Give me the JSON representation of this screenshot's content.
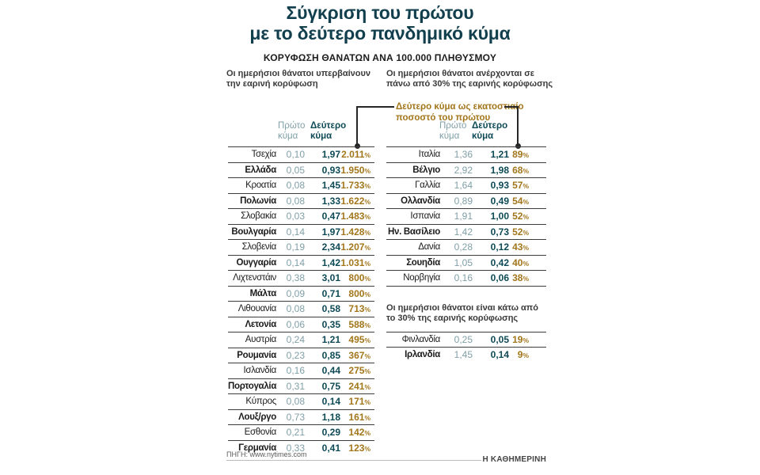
{
  "title": {
    "lines": [
      "Σύγκριση του πρώτου",
      "με το δεύτερο πανδημικό κύμα"
    ]
  },
  "subtitle": "ΚΟΡΥΦΩΣΗ ΘΑΝΑΤΩΝ ΑΝΑ 100.000 ΠΛΗΘΥΣΜΟΥ",
  "sections": {
    "left_label": "Οι ημερήσιοι θάνατοι υπερβαίνουν την εαρινή κορύφωση",
    "right_label": "Οι ημερήσιοι θάνατοι ανέρχονται σε πάνω από 30% της εαρινής κορύφωσης",
    "below30_label": "Οι ημερήσιοι θάνατοι είναι κάτω από το 30% της εαρινής κορύφωσης"
  },
  "callout": "Δεύτερο κύμα ως εκατοστιαίο ποσοστό του πρώτου",
  "column_headers": {
    "first_wave": "Πρώτο κύμα",
    "second_wave": "Δεύτερο κύμα"
  },
  "colors": {
    "title": "#123f4d",
    "first_wave": "#7f9fa7",
    "second_wave": "#0d4a56",
    "percent": "#a2761b",
    "rule": "#3d3d3d",
    "bracket": "#262626"
  },
  "chart_data": {
    "type": "table",
    "title": "Σύγκριση του πρώτου με το δεύτερο πανδημικό κύμα",
    "subtitle": "ΚΟΡΥΦΩΣΗ ΘΑΝΑΤΩΝ ΑΝΑ 100.000 ΠΛΗΘΥΣΜΟΥ",
    "columns": [
      "Χώρα",
      "Πρώτο κύμα",
      "Δεύτερο κύμα",
      "Δεύτερο κύμα ως εκατοστιαίο ποσοστό του πρώτου"
    ],
    "groups": [
      {
        "label": "Οι ημερήσιοι θάνατοι υπερβαίνουν την εαρινή κορύφωση",
        "rows": [
          {
            "country": "Τσεχία",
            "first_wave": "0,10",
            "second_wave": "1,97",
            "second_as_pct_of_first": "2.011%"
          },
          {
            "country": "Ελλάδα",
            "first_wave": "0,05",
            "second_wave": "0,93",
            "second_as_pct_of_first": "1.950%"
          },
          {
            "country": "Κροατία",
            "first_wave": "0,08",
            "second_wave": "1,45",
            "second_as_pct_of_first": "1.733%"
          },
          {
            "country": "Πολωνία",
            "first_wave": "0,08",
            "second_wave": "1,33",
            "second_as_pct_of_first": "1.622%"
          },
          {
            "country": "Σλοβακία",
            "first_wave": "0,03",
            "second_wave": "0,47",
            "second_as_pct_of_first": "1.483%"
          },
          {
            "country": "Βουλγαρία",
            "first_wave": "0,14",
            "second_wave": "1,97",
            "second_as_pct_of_first": "1.428%"
          },
          {
            "country": "Σλοβενία",
            "first_wave": "0,19",
            "second_wave": "2,34",
            "second_as_pct_of_first": "1.207%"
          },
          {
            "country": "Ουγγαρία",
            "first_wave": "0,14",
            "second_wave": "1,42",
            "second_as_pct_of_first": "1.031%"
          },
          {
            "country": "Λιχτενστάιν",
            "first_wave": "0,38",
            "second_wave": "3,01",
            "second_as_pct_of_first": "800%"
          },
          {
            "country": "Μάλτα",
            "first_wave": "0,09",
            "second_wave": "0,71",
            "second_as_pct_of_first": "800%"
          },
          {
            "country": "Λιθουανία",
            "first_wave": "0,08",
            "second_wave": "0,58",
            "second_as_pct_of_first": "713%"
          },
          {
            "country": "Λετονία",
            "first_wave": "0,06",
            "second_wave": "0,35",
            "second_as_pct_of_first": "588%"
          },
          {
            "country": "Αυστρία",
            "first_wave": "0,24",
            "second_wave": "1,21",
            "second_as_pct_of_first": "495%"
          },
          {
            "country": "Ρουμανία",
            "first_wave": "0,23",
            "second_wave": "0,85",
            "second_as_pct_of_first": "367%"
          },
          {
            "country": "Ισλανδία",
            "first_wave": "0,16",
            "second_wave": "0,44",
            "second_as_pct_of_first": "275%"
          },
          {
            "country": "Πορτογαλία",
            "first_wave": "0,31",
            "second_wave": "0,75",
            "second_as_pct_of_first": "241%"
          },
          {
            "country": "Κύπρος",
            "first_wave": "0,08",
            "second_wave": "0,14",
            "second_as_pct_of_first": "171%"
          },
          {
            "country": "Λουξ/ργο",
            "first_wave": "0,73",
            "second_wave": "1,18",
            "second_as_pct_of_first": "161%"
          },
          {
            "country": "Εσθονία",
            "first_wave": "0,21",
            "second_wave": "0,29",
            "second_as_pct_of_first": "142%"
          },
          {
            "country": "Γερμανία",
            "first_wave": "0,33",
            "second_wave": "0,41",
            "second_as_pct_of_first": "123%"
          }
        ]
      },
      {
        "label": "Οι ημερήσιοι θάνατοι ανέρχονται σε πάνω από 30% της εαρινής κορύφωσης",
        "rows": [
          {
            "country": "Ιταλία",
            "first_wave": "1,36",
            "second_wave": "1,21",
            "second_as_pct_of_first": "89%"
          },
          {
            "country": "Βέλγιο",
            "first_wave": "2,92",
            "second_wave": "1,98",
            "second_as_pct_of_first": "68%"
          },
          {
            "country": "Γαλλία",
            "first_wave": "1,64",
            "second_wave": "0,93",
            "second_as_pct_of_first": "57%"
          },
          {
            "country": "Ολλανδία",
            "first_wave": "0,89",
            "second_wave": "0,49",
            "second_as_pct_of_first": "54%"
          },
          {
            "country": "Ισπανία",
            "first_wave": "1,91",
            "second_wave": "1,00",
            "second_as_pct_of_first": "52%"
          },
          {
            "country": "Ην. Βασίλειο",
            "first_wave": "1,42",
            "second_wave": "0,73",
            "second_as_pct_of_first": "52%"
          },
          {
            "country": "Δανία",
            "first_wave": "0,28",
            "second_wave": "0,12",
            "second_as_pct_of_first": "43%"
          },
          {
            "country": "Σουηδία",
            "first_wave": "1,05",
            "second_wave": "0,42",
            "second_as_pct_of_first": "40%"
          },
          {
            "country": "Νορβηγία",
            "first_wave": "0,16",
            "second_wave": "0,06",
            "second_as_pct_of_first": "38%"
          }
        ]
      },
      {
        "label": "Οι ημερήσιοι θάνατοι είναι κάτω από το 30% της εαρινής κορύφωσης",
        "rows": [
          {
            "country": "Φινλανδία",
            "first_wave": "0,25",
            "second_wave": "0,05",
            "second_as_pct_of_first": "19%"
          },
          {
            "country": "Ιρλανδία",
            "first_wave": "1,45",
            "second_wave": "0,14",
            "second_as_pct_of_first": "9%"
          }
        ]
      }
    ]
  },
  "footer": {
    "source": "ΠΗΓΗ: www.nytimes.com",
    "brand": "Η ΚΑΘΗΜΕΡΙΝΗ"
  }
}
